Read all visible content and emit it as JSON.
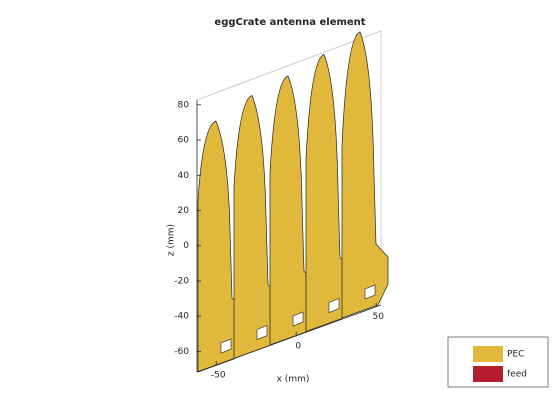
{
  "chart_data": {
    "type": "antenna3d",
    "title": "eggCrate antenna element",
    "xlabel": "x (mm)",
    "zlabel": "z (mm)",
    "xlim": [
      -62,
      53
    ],
    "xticks": [
      -50,
      0,
      50
    ],
    "zlim": [
      -70,
      85
    ],
    "zticks": [
      -60,
      -40,
      -20,
      0,
      20,
      40,
      60,
      80
    ],
    "legend": [
      {
        "name": "PEC",
        "color": "#dfb83c"
      },
      {
        "name": "feed",
        "color": "#b51c2c"
      }
    ]
  }
}
